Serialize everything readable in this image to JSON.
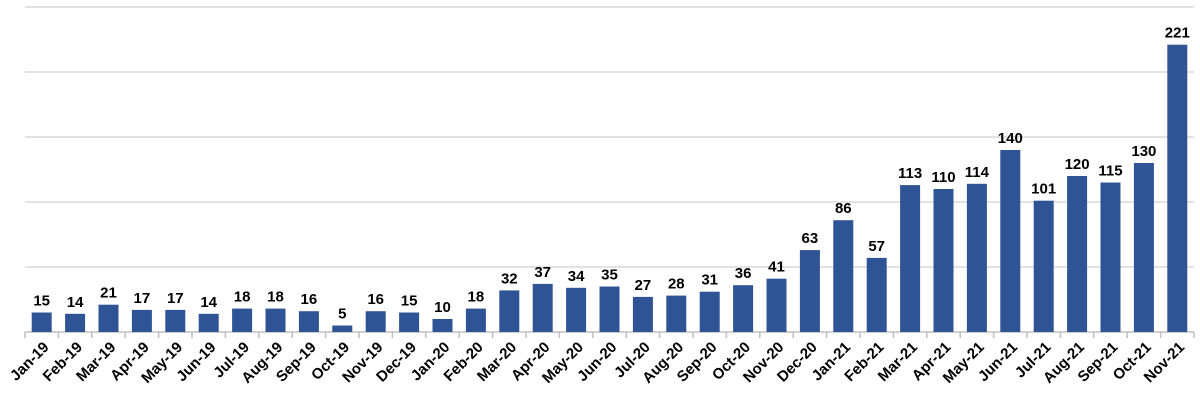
{
  "chart_data": {
    "type": "bar",
    "title": "",
    "xlabel": "",
    "ylabel": "",
    "categories": [
      "Jan-19",
      "Feb-19",
      "Mar-19",
      "Apr-19",
      "May-19",
      "Jun-19",
      "Jul-19",
      "Aug-19",
      "Sep-19",
      "Oct-19",
      "Nov-19",
      "Dec-19",
      "Jan-20",
      "Feb-20",
      "Mar-20",
      "Apr-20",
      "May-20",
      "Jun-20",
      "Jul-20",
      "Aug-20",
      "Sep-20",
      "Oct-20",
      "Nov-20",
      "Dec-20",
      "Jan-21",
      "Feb-21",
      "Mar-21",
      "Apr-21",
      "May-21",
      "Jun-21",
      "Jul-21",
      "Aug-21",
      "Sep-21",
      "Oct-21",
      "Nov-21"
    ],
    "values": [
      15,
      14,
      21,
      17,
      17,
      14,
      18,
      18,
      16,
      5,
      16,
      15,
      10,
      18,
      32,
      37,
      34,
      35,
      27,
      28,
      31,
      36,
      41,
      63,
      86,
      57,
      113,
      110,
      114,
      140,
      101,
      120,
      115,
      130,
      221
    ],
    "ylim": [
      0,
      250
    ],
    "gridline_interval": 50,
    "grid": true,
    "legend": "none",
    "data_labels": true,
    "colors": {
      "bar": "#2F5496",
      "gridline": "#D9D9D9",
      "axis": "#BFBFBF",
      "label": "#000000"
    }
  }
}
